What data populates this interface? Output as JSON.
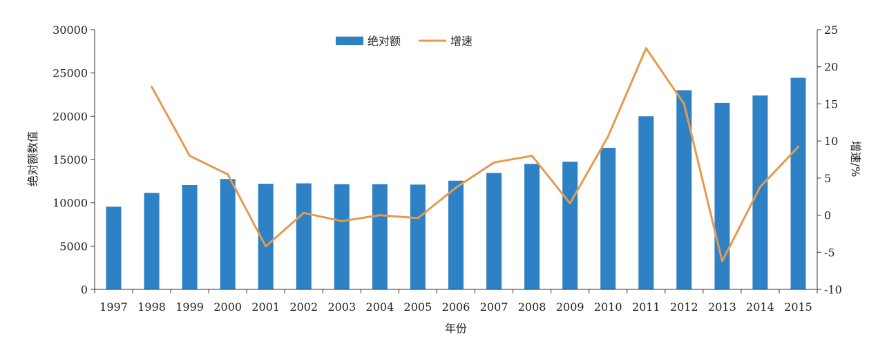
{
  "chart_data": {
    "type": "bar",
    "categories": [
      "1997",
      "1998",
      "1999",
      "2000",
      "2001",
      "2002",
      "2003",
      "2004",
      "2005",
      "2006",
      "2007",
      "2008",
      "2009",
      "2010",
      "2011",
      "2012",
      "2013",
      "2014",
      "2015"
    ],
    "series": [
      {
        "name": "绝对额",
        "type": "bar",
        "axis": "left",
        "color": "#2f81c6",
        "values": [
          9550,
          11150,
          12050,
          12750,
          12200,
          12250,
          12150,
          12150,
          12100,
          12550,
          13450,
          14500,
          14750,
          16350,
          20000,
          23000,
          21550,
          22400,
          24450
        ]
      },
      {
        "name": "增速",
        "type": "line",
        "axis": "right",
        "color": "#e59a4c",
        "values": [
          null,
          17.3,
          8.0,
          5.5,
          -4.2,
          0.3,
          -0.8,
          0.0,
          -0.4,
          3.7,
          7.1,
          8.0,
          1.6,
          10.6,
          22.5,
          15.0,
          -6.2,
          3.8,
          9.2
        ]
      }
    ],
    "xlabel": "年份",
    "ylabel": "绝对额数值",
    "y2label": "增速/%",
    "ylim": [
      0,
      30000
    ],
    "yticks": [
      "0",
      "5000",
      "10000",
      "15000",
      "20000",
      "25000",
      "30000"
    ],
    "y2lim": [
      -10,
      25
    ],
    "y2ticks": [
      "-10",
      "-5",
      "0",
      "5",
      "10",
      "15",
      "20",
      "25"
    ],
    "legend_position": "top-center",
    "grid": false
  }
}
